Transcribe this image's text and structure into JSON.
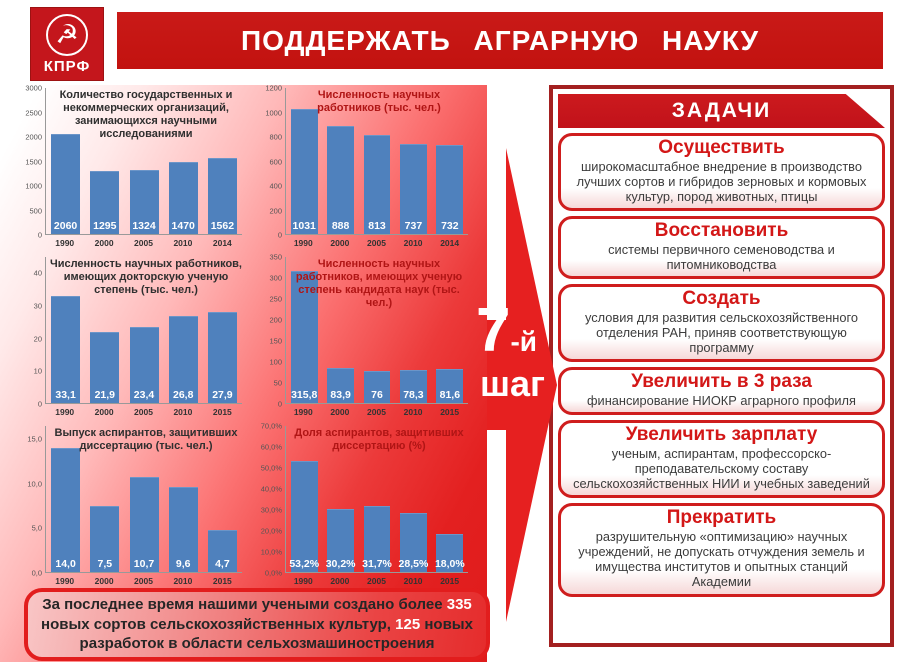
{
  "header": {
    "title": "ПОДДЕРЖАТЬ АГРАРНУЮ НАУКУ",
    "logo": {
      "party": "КПРФ",
      "emblem_icon": "hammer-and-sickle-icon",
      "emblem_glyph": "☭"
    }
  },
  "step_arrow": {
    "number": "7",
    "suffix": "-й",
    "word": "шаг"
  },
  "tasks_panel": {
    "title": "ЗАДАЧИ",
    "tasks": [
      {
        "heading": "Осуществить",
        "body": "широкомасштабное  внедрение  в производство лучших сортов и гибридов зерновых  и кормовых  культур, пород животных,  птицы"
      },
      {
        "heading": "Восстановить",
        "body": "системы  первичного  семеноводства  и питомниководства"
      },
      {
        "heading": "Создать",
        "body": "условия  для  развития сельскохозяйственного  отделения  РАН, приняв  соответствующую  программу"
      },
      {
        "heading": "Увеличить в 3 раза",
        "body": "финансирование  НИОКР аграрного  профиля"
      },
      {
        "heading": "Увеличить зарплату",
        "body": "ученым, аспирантам, профессорско-преподавательскому составу сельскохозяйственных НИИ и учебных заведений"
      },
      {
        "heading": "Прекратить",
        "body": "разрушительную  «оптимизацию»  научных учреждений,  не  допускать  отчуждения земель и имущества институтов и опытных станций  Академии"
      }
    ]
  },
  "bottom_note": {
    "segments": [
      {
        "text": "За последнее время нашими учеными создано более ",
        "highlight": false
      },
      {
        "text": "335",
        "highlight": true
      },
      {
        "text": " новых сортов сельскохозяйственных культур, ",
        "highlight": false
      },
      {
        "text": "125",
        "highlight": true
      },
      {
        "text": " новых разработок в области сельхозмашиностроения",
        "highlight": false
      }
    ]
  },
  "colors": {
    "bar_blue": "#4f81bd",
    "band_red": "#c4161c",
    "panel_gradient_red": "#e31e1e",
    "dark_red_border": "#a32020",
    "card_border_red": "#cf1d1d",
    "heading_red": "#d31717"
  },
  "chart_data": [
    {
      "type": "bar",
      "title": "Количество государственных и некоммерческих организаций, занимающихся научными исследованиями",
      "title_color": "#2f2f2f",
      "categories": [
        "1990",
        "2000",
        "2005",
        "2010",
        "2014"
      ],
      "values": [
        2060,
        1295,
        1324,
        1470,
        1562
      ],
      "labels": [
        "2060",
        "1295",
        "1324",
        "1470",
        "1562"
      ],
      "ylim": [
        0,
        3000
      ],
      "yticks": [
        {
          "v": 0,
          "t": "0"
        },
        {
          "v": 500,
          "t": "500"
        },
        {
          "v": 1000,
          "t": "1000"
        },
        {
          "v": 1500,
          "t": "1500"
        },
        {
          "v": 2000,
          "t": "2000"
        },
        {
          "v": 2500,
          "t": "2500"
        },
        {
          "v": 3000,
          "t": "3000"
        }
      ]
    },
    {
      "type": "bar",
      "title": "Численность научных работников (тыс. чел.)",
      "title_color": "#b01515",
      "categories": [
        "1990",
        "2000",
        "2005",
        "2010",
        "2014"
      ],
      "values": [
        1031,
        888,
        813,
        737,
        732
      ],
      "labels": [
        "1031",
        "888",
        "813",
        "737",
        "732"
      ],
      "ylim": [
        0,
        1200
      ],
      "yticks": [
        {
          "v": 0,
          "t": "0"
        },
        {
          "v": 200,
          "t": "200"
        },
        {
          "v": 400,
          "t": "400"
        },
        {
          "v": 600,
          "t": "600"
        },
        {
          "v": 800,
          "t": "800"
        },
        {
          "v": 1000,
          "t": "1000"
        },
        {
          "v": 1200,
          "t": "1200"
        }
      ]
    },
    {
      "type": "bar",
      "title": "Численность научных работников, имеющих докторскую ученую степень (тыс. чел.)",
      "title_color": "#2f2f2f",
      "categories": [
        "1990",
        "2000",
        "2005",
        "2010",
        "2015"
      ],
      "values": [
        33.1,
        21.9,
        23.4,
        26.8,
        27.9
      ],
      "labels": [
        "33,1",
        "21,9",
        "23,4",
        "26,8",
        "27,9"
      ],
      "ylim": [
        0,
        45
      ],
      "yticks": [
        {
          "v": 0,
          "t": "0"
        },
        {
          "v": 10,
          "t": "10"
        },
        {
          "v": 20,
          "t": "20"
        },
        {
          "v": 30,
          "t": "30"
        },
        {
          "v": 40,
          "t": "40"
        }
      ]
    },
    {
      "type": "bar",
      "title": "Численность научных работников, имеющих ученую степень кандидата наук (тыс. чел.)",
      "title_color": "#b01515",
      "categories": [
        "1990",
        "2000",
        "2005",
        "2010",
        "2015"
      ],
      "values": [
        315.8,
        83.9,
        76,
        78.3,
        81.6
      ],
      "labels": [
        "315,8",
        "83,9",
        "76",
        "78,3",
        "81,6"
      ],
      "ylim": [
        0,
        350
      ],
      "yticks": [
        {
          "v": 0,
          "t": "0"
        },
        {
          "v": 50,
          "t": "50"
        },
        {
          "v": 100,
          "t": "100"
        },
        {
          "v": 150,
          "t": "150"
        },
        {
          "v": 200,
          "t": "200"
        },
        {
          "v": 250,
          "t": "250"
        },
        {
          "v": 300,
          "t": "300"
        },
        {
          "v": 350,
          "t": "350"
        }
      ]
    },
    {
      "type": "bar",
      "title": "Выпуск аспирантов, защитивших диссертацию (тыс. чел.)",
      "title_color": "#2f2f2f",
      "categories": [
        "1990",
        "2000",
        "2005",
        "2010",
        "2015"
      ],
      "values": [
        14.0,
        7.5,
        10.7,
        9.6,
        4.7
      ],
      "labels": [
        "14,0",
        "7,5",
        "10,7",
        "9,6",
        "4,7"
      ],
      "ylim": [
        0,
        16.5
      ],
      "yticks": [
        {
          "v": 0,
          "t": "0,0"
        },
        {
          "v": 5,
          "t": "5,0"
        },
        {
          "v": 10,
          "t": "10,0"
        },
        {
          "v": 15,
          "t": "15,0"
        }
      ]
    },
    {
      "type": "bar",
      "title": "Доля аспирантов, защитивших диссертацию (%)",
      "title_color": "#b01515",
      "categories": [
        "1990",
        "2000",
        "2005",
        "2010",
        "2015"
      ],
      "values": [
        53.2,
        30.2,
        31.7,
        28.5,
        18.0
      ],
      "labels": [
        "53,2%",
        "30,2%",
        "31,7%",
        "28,5%",
        "18,0%"
      ],
      "ylim": [
        0,
        70
      ],
      "yticks": [
        {
          "v": 0,
          "t": "0,0%"
        },
        {
          "v": 10,
          "t": "10,0%"
        },
        {
          "v": 20,
          "t": "20,0%"
        },
        {
          "v": 30,
          "t": "30,0%"
        },
        {
          "v": 40,
          "t": "40,0%"
        },
        {
          "v": 50,
          "t": "50,0%"
        },
        {
          "v": 60,
          "t": "60,0%"
        },
        {
          "v": 70,
          "t": "70,0%"
        }
      ]
    }
  ]
}
